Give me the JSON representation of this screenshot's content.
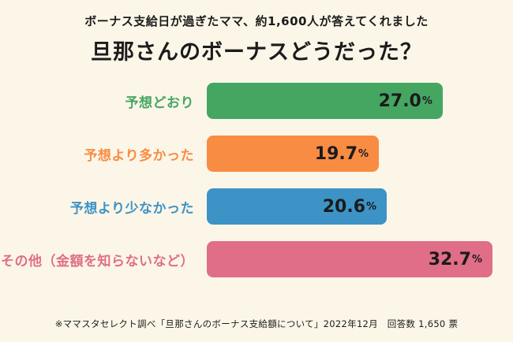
{
  "colors": {
    "background": "#FBF6E8",
    "text": "#1B1B1B",
    "value_text": "#1B1B1B"
  },
  "title": {
    "subtitle": "ボーナス支給日が過ぎたママ、約1,600人が答えてくれました",
    "main": "旦那さんのボーナスどうだった？"
  },
  "chart_data": {
    "type": "bar",
    "orientation": "horizontal",
    "categories": [
      "予想どおり",
      "予想より多かった",
      "予想より少なかった",
      "その他（金額を知らないなど）"
    ],
    "values": [
      27.0,
      19.7,
      20.6,
      32.7
    ],
    "value_labels": [
      "27.0",
      "19.7",
      "20.6",
      "32.7"
    ],
    "unit": "%",
    "bar_colors": [
      "#45A662",
      "#F98C43",
      "#3D93C5",
      "#E06E88"
    ],
    "xlim": [
      0,
      32.7
    ],
    "grid": false,
    "legend": false,
    "title": "旦那さんのボーナスどうだった？"
  },
  "footer": {
    "note": "※ママスタセレクト調べ「旦那さんのボーナス支給額について」2022年12月　回答数 1,650 票"
  }
}
